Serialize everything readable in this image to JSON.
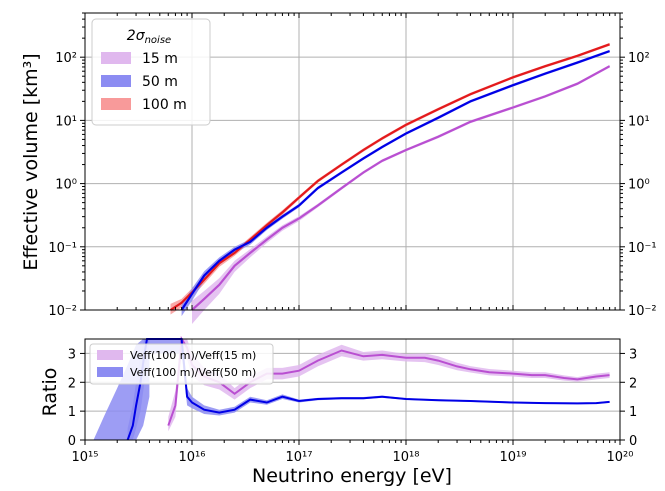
{
  "colors": {
    "s15": "#b94fd1",
    "s15_band": "#e0b8ee",
    "s50": "#0000e6",
    "s50_band": "#8c8cf2",
    "s100": "#e31a1c",
    "s100_band": "#f89a9a",
    "grid": "#b0b0b0"
  },
  "chart_data": [
    {
      "type": "line",
      "scale": {
        "x": "log",
        "y": "log"
      },
      "xlim": [
        1000000000000000.0,
        1e+20
      ],
      "ylim": [
        0.01,
        500
      ],
      "xlabel": "",
      "ylabel": "Effective volume [km³]",
      "grid": true,
      "legend": {
        "title": "2σnoise",
        "placement": "top-left",
        "entries": [
          "15 m",
          "50 m",
          "100 m"
        ]
      },
      "x_ticks": [
        "10¹⁵",
        "10¹⁶",
        "10¹⁷",
        "10¹⁸",
        "10¹⁹",
        "10²⁰"
      ],
      "y_ticks": [
        "10⁻²",
        "10⁻¹",
        "10⁰",
        "10¹",
        "10²"
      ],
      "series": [
        {
          "name": "100 m",
          "color": "#e31a1c",
          "x": [
            6300000000000000.0,
            8000000000000000.0,
            1e+16,
            1.3e+16,
            1.8e+16,
            2.5e+16,
            3.5e+16,
            5e+16,
            7e+16,
            1e+17,
            1.5e+17,
            2.5e+17,
            4e+17,
            6e+17,
            1e+18,
            2e+18,
            4e+18,
            1e+19,
            2e+19,
            4e+19,
            8e+19
          ],
          "y": [
            0.01,
            0.013,
            0.019,
            0.03,
            0.055,
            0.08,
            0.13,
            0.22,
            0.35,
            0.6,
            1.1,
            2.0,
            3.4,
            5.2,
            8.5,
            15,
            26,
            48,
            72,
            105,
            160
          ],
          "band_low": [
            0.0085,
            0.011,
            0.016,
            0.026,
            0.048,
            0.072,
            0.117,
            0.2,
            0.32,
            0.56,
            1.03,
            1.88,
            3.2,
            4.9,
            8.0,
            14.2,
            24.7,
            45.6,
            68.4,
            99.8,
            152
          ],
          "band_high": [
            0.0125,
            0.015,
            0.022,
            0.034,
            0.062,
            0.088,
            0.143,
            0.24,
            0.38,
            0.64,
            1.17,
            2.12,
            3.6,
            5.5,
            9.0,
            15.8,
            27.3,
            50.4,
            75.6,
            110,
            168
          ]
        },
        {
          "name": "50 m",
          "color": "#0000e6",
          "x": [
            8000000000000000.0,
            1e+16,
            1.3e+16,
            1.8e+16,
            2.5e+16,
            3.5e+16,
            5e+16,
            7e+16,
            1e+17,
            1.5e+17,
            2.5e+17,
            4e+17,
            6e+17,
            1e+18,
            2e+18,
            4e+18,
            1e+19,
            2e+19,
            4e+19,
            8e+19
          ],
          "y": [
            0.01,
            0.018,
            0.035,
            0.06,
            0.09,
            0.12,
            0.2,
            0.3,
            0.45,
            0.85,
            1.5,
            2.5,
            3.8,
            6.2,
            11,
            20,
            36,
            55,
            82,
            125
          ],
          "band_low": [
            0.008,
            0.014,
            0.029,
            0.052,
            0.08,
            0.108,
            0.184,
            0.278,
            0.42,
            0.8,
            1.42,
            2.37,
            3.6,
            5.9,
            10.4,
            19,
            34.2,
            52.2,
            77.9,
            119
          ],
          "band_high": [
            0.012,
            0.022,
            0.041,
            0.068,
            0.1,
            0.132,
            0.216,
            0.322,
            0.48,
            0.9,
            1.58,
            2.63,
            4.0,
            6.5,
            11.6,
            21,
            37.8,
            57.8,
            86.1,
            131
          ]
        },
        {
          "name": "15 m",
          "color": "#b94fd1",
          "x": [
            1e+16,
            1.3e+16,
            1.8e+16,
            2.5e+16,
            3.5e+16,
            5e+16,
            7e+16,
            1e+17,
            1.5e+17,
            2.5e+17,
            4e+17,
            6e+17,
            1e+18,
            2e+18,
            4e+18,
            1e+19,
            2e+19,
            4e+19,
            8e+19
          ],
          "y": [
            0.01,
            0.015,
            0.025,
            0.05,
            0.08,
            0.13,
            0.2,
            0.28,
            0.45,
            0.85,
            1.5,
            2.3,
            3.4,
            5.5,
            9.5,
            16,
            24,
            38,
            72
          ],
          "band_low": [
            0.006,
            0.01,
            0.018,
            0.04,
            0.068,
            0.115,
            0.18,
            0.255,
            0.42,
            0.8,
            1.42,
            2.18,
            3.23,
            5.2,
            9.0,
            15.2,
            22.8,
            36.1,
            68.4
          ],
          "band_high": [
            0.014,
            0.02,
            0.032,
            0.06,
            0.092,
            0.145,
            0.22,
            0.305,
            0.48,
            0.9,
            1.58,
            2.42,
            3.57,
            5.8,
            10,
            16.8,
            25.2,
            39.9,
            75.6
          ]
        }
      ]
    },
    {
      "type": "line",
      "scale": {
        "x": "log",
        "y": "linear"
      },
      "xlim": [
        1000000000000000.0,
        1e+20
      ],
      "ylim": [
        0,
        3.5
      ],
      "xlabel": "Neutrino energy [eV]",
      "ylabel": "Ratio",
      "grid": true,
      "legend": {
        "placement": "top-left",
        "entries": [
          "Veff(100 m)/Veff(15 m)",
          "Veff(100 m)/Veff(50 m)"
        ]
      },
      "x_ticks": [
        "10¹⁵",
        "10¹⁶",
        "10¹⁷",
        "10¹⁸",
        "10¹⁹",
        "10²⁰"
      ],
      "y_ticks": [
        "0",
        "1",
        "2",
        "3"
      ],
      "series": [
        {
          "name": "Veff(100 m)/Veff(15 m)",
          "color": "#b94fd1",
          "x": [
            6000000000000000.0,
            7000000000000000.0,
            8000000000000000.0,
            9000000000000000.0,
            1e+16,
            1.3e+16,
            1.8e+16,
            2.5e+16,
            3.5e+16,
            5e+16,
            7e+16,
            1e+17,
            1.5e+17,
            2.5e+17,
            4e+17,
            6e+17,
            1e+18,
            1.5e+18,
            2e+18,
            3e+18,
            4e+18,
            6e+18,
            1e+19,
            1.5e+19,
            2e+19,
            3e+19,
            4e+19,
            6e+19,
            8e+19
          ],
          "y": [
            0.5,
            1.2,
            3.5,
            3.2,
            2.6,
            2.2,
            2.0,
            1.6,
            2.0,
            2.3,
            2.3,
            2.4,
            2.75,
            3.1,
            2.9,
            2.95,
            2.85,
            2.85,
            2.75,
            2.55,
            2.45,
            2.35,
            2.3,
            2.25,
            2.25,
            2.15,
            2.1,
            2.2,
            2.25
          ],
          "band_low": [
            0.3,
            0.8,
            3.0,
            2.8,
            2.2,
            1.9,
            1.75,
            1.4,
            1.8,
            2.1,
            2.1,
            2.2,
            2.55,
            2.9,
            2.75,
            2.8,
            2.72,
            2.7,
            2.6,
            2.42,
            2.34,
            2.24,
            2.2,
            2.15,
            2.15,
            2.06,
            2.02,
            2.1,
            2.15
          ],
          "band_high": [
            0.8,
            1.7,
            3.5,
            3.5,
            3.0,
            2.5,
            2.3,
            1.8,
            2.2,
            2.5,
            2.5,
            2.6,
            2.95,
            3.3,
            3.05,
            3.1,
            2.98,
            3.0,
            2.9,
            2.68,
            2.56,
            2.46,
            2.4,
            2.35,
            2.35,
            2.24,
            2.18,
            2.3,
            2.35
          ]
        },
        {
          "name": "Veff(100 m)/Veff(50 m)",
          "color": "#0000e6",
          "x": [
            2500000000000000.0,
            2800000000000000.0,
            3000000000000000.0,
            3300000000000000.0,
            3600000000000000.0,
            3800000000000000.0,
            4000000000000000.0,
            8000000000000000.0,
            9000000000000000.0,
            1e+16,
            1.3e+16,
            1.8e+16,
            2.5e+16,
            3.5e+16,
            5e+16,
            7e+16,
            1e+17,
            1.5e+17,
            2.5e+17,
            4e+17,
            6e+17,
            1e+18,
            2e+18,
            4e+18,
            1e+19,
            2e+19,
            4e+19,
            6e+19,
            8e+19
          ],
          "y": [
            0.0,
            0.5,
            1.2,
            2.0,
            3.0,
            3.5,
            3.5,
            3.5,
            1.5,
            1.3,
            1.05,
            0.95,
            1.05,
            1.4,
            1.3,
            1.5,
            1.35,
            1.42,
            1.45,
            1.45,
            1.5,
            1.42,
            1.38,
            1.35,
            1.3,
            1.28,
            1.27,
            1.28,
            1.32
          ],
          "band_low": [
            0.0,
            0.0,
            0.4,
            1.0,
            2.0,
            2.8,
            3.0,
            3.0,
            1.2,
            1.1,
            0.9,
            0.85,
            0.95,
            1.3,
            1.22,
            1.42,
            1.3,
            1.38,
            1.41,
            1.41,
            1.46,
            1.39,
            1.35,
            1.32,
            1.27,
            1.25,
            1.24,
            1.25,
            1.29
          ],
          "band_high": [
            0.4,
            1.2,
            2.0,
            3.0,
            3.5,
            3.5,
            3.5,
            3.5,
            1.8,
            1.5,
            1.2,
            1.05,
            1.15,
            1.5,
            1.38,
            1.58,
            1.4,
            1.46,
            1.49,
            1.49,
            1.54,
            1.45,
            1.41,
            1.38,
            1.33,
            1.31,
            1.3,
            1.31,
            1.35
          ]
        }
      ],
      "extra_band": {
        "color": "#8c8cf2",
        "x": [
          1200000000000000.0,
          1500000000000000.0,
          2000000000000000.0,
          2500000000000000.0,
          3000000000000000.0,
          3500000000000000.0,
          4000000000000000.0
        ],
        "low": [
          0.0,
          0.0,
          0.0,
          0.0,
          0.0,
          0.5,
          1.5
        ],
        "high": [
          0.0,
          0.8,
          1.8,
          2.6,
          3.3,
          3.5,
          3.5
        ]
      }
    }
  ]
}
